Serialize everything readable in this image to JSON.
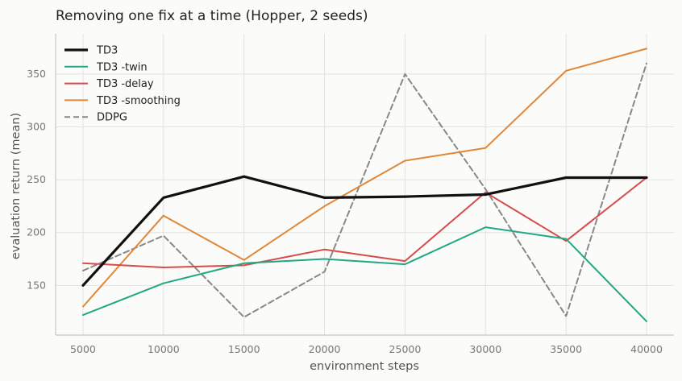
{
  "chart_data": {
    "type": "line",
    "title": "Removing one fix at a time (Hopper, 2 seeds)",
    "xlabel": "environment steps",
    "ylabel": "evaluation return (mean)",
    "x": [
      5000,
      10000,
      15000,
      20000,
      25000,
      30000,
      35000,
      40000
    ],
    "xlim": [
      3300,
      41700
    ],
    "ylim": [
      103,
      388
    ],
    "xticks": [
      5000,
      10000,
      15000,
      20000,
      25000,
      30000,
      35000,
      40000
    ],
    "yticks": [
      150,
      200,
      250,
      300,
      350
    ],
    "grid": true,
    "legend_position": "top-left",
    "series": [
      {
        "name": "TD3",
        "color": "#111111",
        "style": "solid",
        "width": 3.2,
        "values": [
          150,
          233,
          253,
          233,
          234,
          236,
          252,
          252
        ]
      },
      {
        "name": "TD3 -twin",
        "color": "#21a883",
        "style": "solid",
        "width": 2,
        "values": [
          122,
          152,
          171,
          175,
          170,
          205,
          194,
          116
        ]
      },
      {
        "name": "TD3 -delay",
        "color": "#d84b4b",
        "style": "solid",
        "width": 2,
        "values": [
          171,
          167,
          169,
          184,
          173,
          238,
          192,
          252
        ]
      },
      {
        "name": "TD3 -smoothing",
        "color": "#e0873a",
        "style": "solid",
        "width": 2,
        "values": [
          130,
          216,
          174,
          225,
          268,
          280,
          353,
          374
        ]
      },
      {
        "name": "DDPG",
        "color": "#888888",
        "style": "dashed",
        "width": 2,
        "values": [
          164,
          197,
          120,
          163,
          350,
          241,
          121,
          360
        ]
      }
    ]
  }
}
